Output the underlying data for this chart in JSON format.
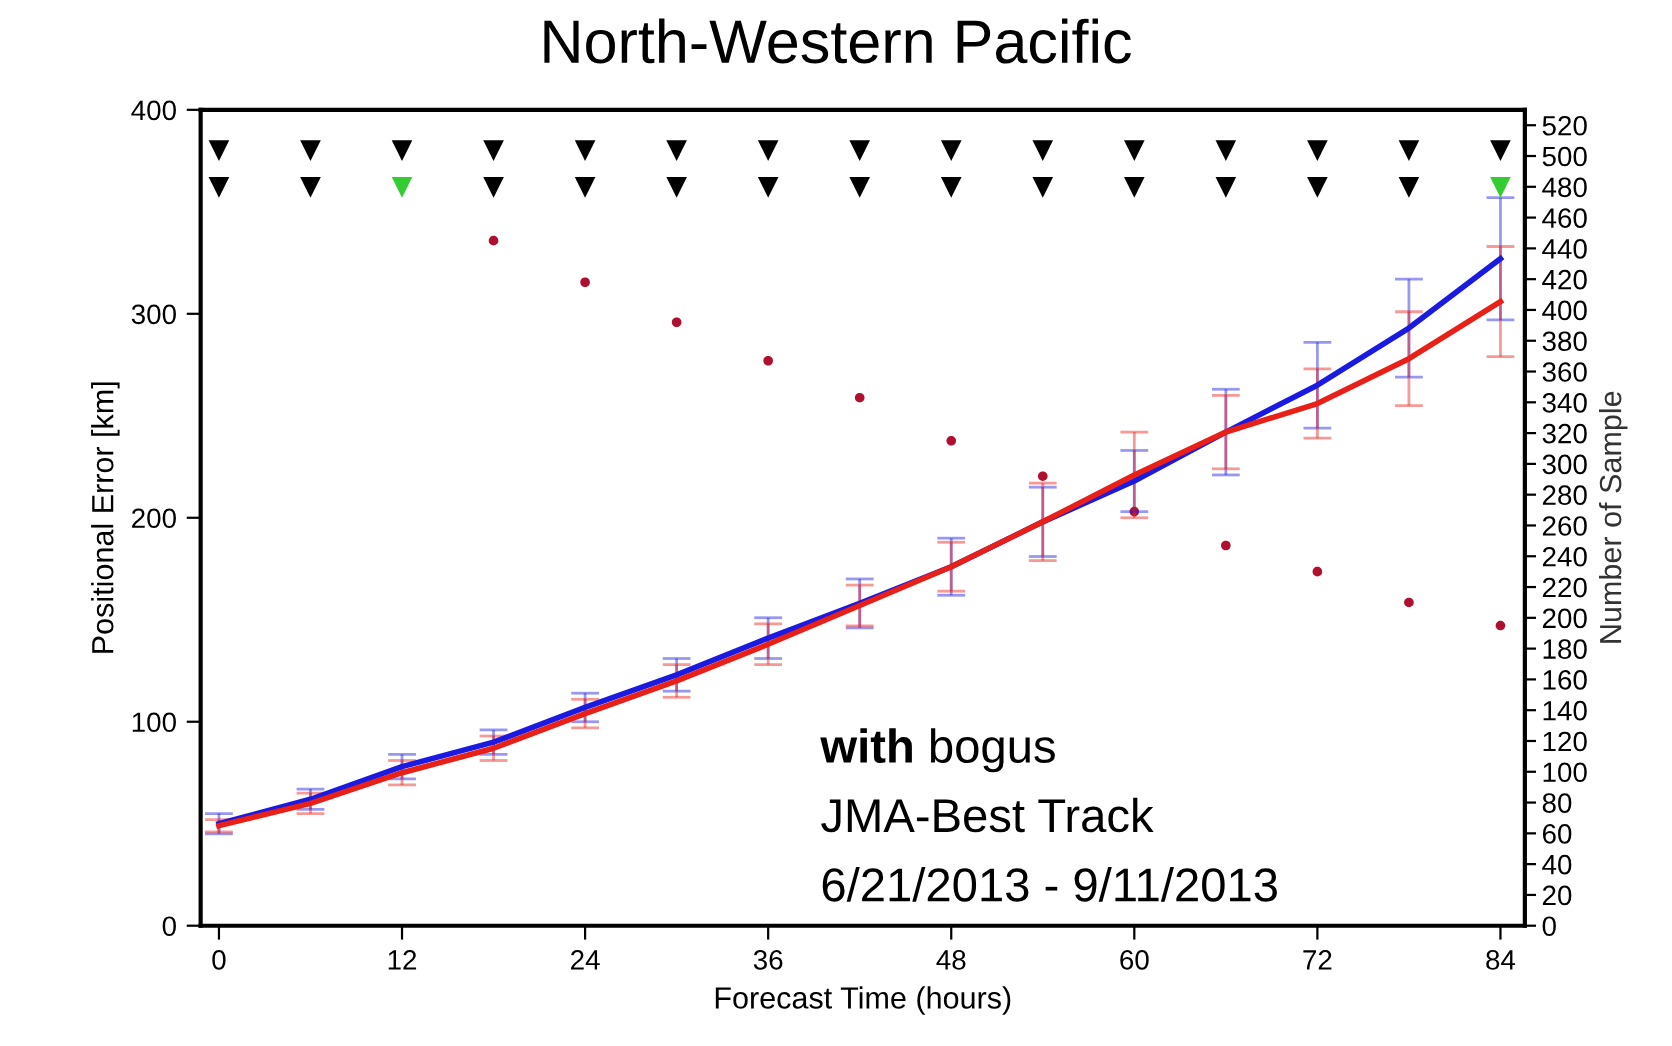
{
  "chart_data": {
    "type": "line",
    "title": "North-Western Pacific",
    "xlabel": "Forecast Time (hours)",
    "ylabel": "Positional Error [km]",
    "y2label": "Number of Sample",
    "x": [
      0,
      6,
      12,
      18,
      24,
      30,
      36,
      42,
      48,
      54,
      60,
      66,
      72,
      78,
      84
    ],
    "series": [
      {
        "color": "#1a1ae0",
        "errors": [
          5,
          5,
          6,
          6,
          7,
          8,
          10,
          12,
          14,
          17,
          15,
          21,
          21,
          24,
          30
        ],
        "values": [
          50,
          62,
          78,
          90,
          107,
          123,
          141,
          158,
          176,
          198,
          218,
          242,
          265,
          293,
          327
        ]
      },
      {
        "color": "#e82018",
        "errors": [
          3,
          5,
          6,
          6,
          7,
          8,
          10,
          10,
          12,
          19,
          21,
          18,
          17,
          23,
          27
        ],
        "values": [
          49,
          60,
          75,
          87,
          104,
          120,
          138,
          157,
          176,
          198,
          221,
          242,
          256,
          278,
          306
        ]
      },
      {
        "type": "scatter",
        "axis": "y2",
        "marker": "circle",
        "color": "#b01030",
        "values": [
          null,
          null,
          null,
          445,
          418,
          392,
          367,
          343,
          315,
          292,
          269,
          247,
          230,
          210,
          195
        ]
      },
      {
        "type": "scatter",
        "marker": "triangle",
        "color": "#000000",
        "values": [
          380,
          380,
          380,
          380,
          380,
          380,
          380,
          380,
          380,
          380,
          380,
          380,
          380,
          380,
          380
        ]
      },
      {
        "type": "scatter",
        "marker": "triangle",
        "colors": [
          "#000000",
          "#000000",
          "#33cc33",
          "#000000",
          "#000000",
          "#000000",
          "#000000",
          "#000000",
          "#000000",
          "#000000",
          "#000000",
          "#000000",
          "#000000",
          "#000000",
          "#33cc33"
        ],
        "values": [
          362,
          362,
          362,
          362,
          362,
          362,
          362,
          362,
          362,
          362,
          362,
          362,
          362,
          362,
          362
        ]
      }
    ],
    "xlim": [
      -1.2,
      85.6
    ],
    "xticks": [
      0,
      12,
      24,
      36,
      48,
      60,
      72,
      84
    ],
    "ylim": [
      0,
      400
    ],
    "yticks": [
      0,
      100,
      200,
      300,
      400
    ],
    "y2lim": [
      0,
      530
    ],
    "y2ticks": [
      0,
      20,
      40,
      60,
      80,
      100,
      120,
      140,
      160,
      180,
      200,
      220,
      240,
      260,
      280,
      300,
      320,
      340,
      360,
      380,
      400,
      420,
      440,
      460,
      480,
      500,
      520
    ],
    "annotations": [
      "with bogus",
      "JMA-Best Track",
      "6/21/2013 - 9/11/2013"
    ],
    "grid": false,
    "line_style": "solid",
    "marker": "none"
  }
}
